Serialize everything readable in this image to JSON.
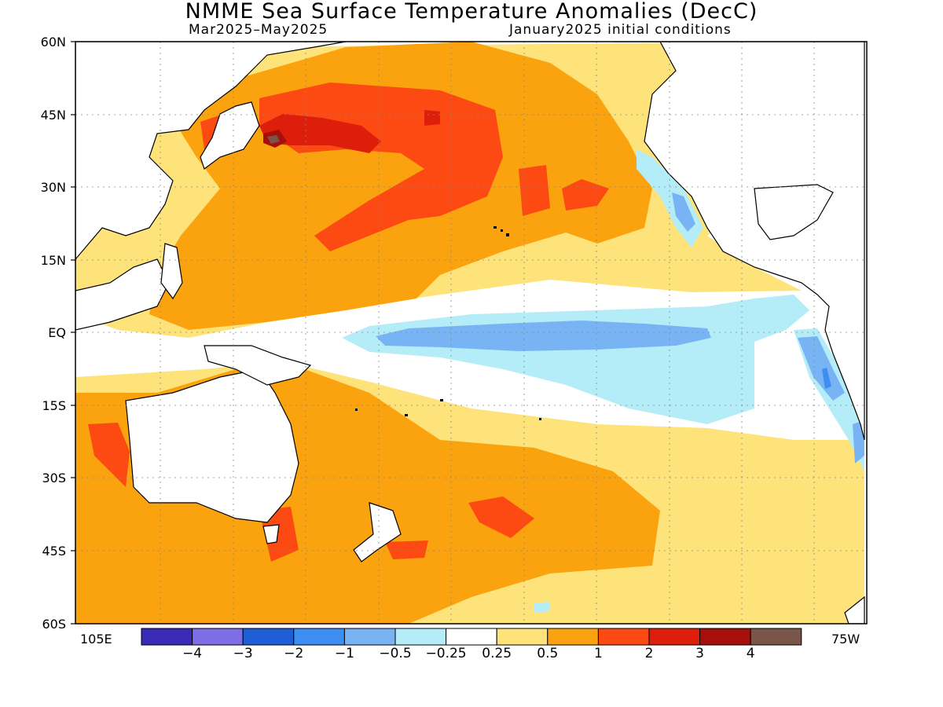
{
  "title": "NMME Sea Surface Temperature Anomalies (DecC)",
  "subtitle_left": "Mar2025–May2025",
  "subtitle_right": "January2025 initial conditions",
  "lat_labels": [
    "60N",
    "45N",
    "30N",
    "15N",
    "EQ",
    "15S",
    "30S",
    "45S",
    "60S"
  ],
  "lon_labels": [
    "105E",
    "75W"
  ],
  "colorbar": {
    "colors": [
      "#3a2ab8",
      "#7d6ee6",
      "#1e5ed6",
      "#3d8ef2",
      "#78b4f4",
      "#b4ecf8",
      "#ffffff",
      "#fde37a",
      "#fba30e",
      "#fc4a12",
      "#dd1e0a",
      "#a60f0a",
      "#7a554a"
    ],
    "labels": [
      "−4",
      "−3",
      "−2",
      "−1",
      "−0.5",
      "−0.25",
      "0.25",
      "0.5",
      "1",
      "2",
      "3",
      "4"
    ]
  }
}
